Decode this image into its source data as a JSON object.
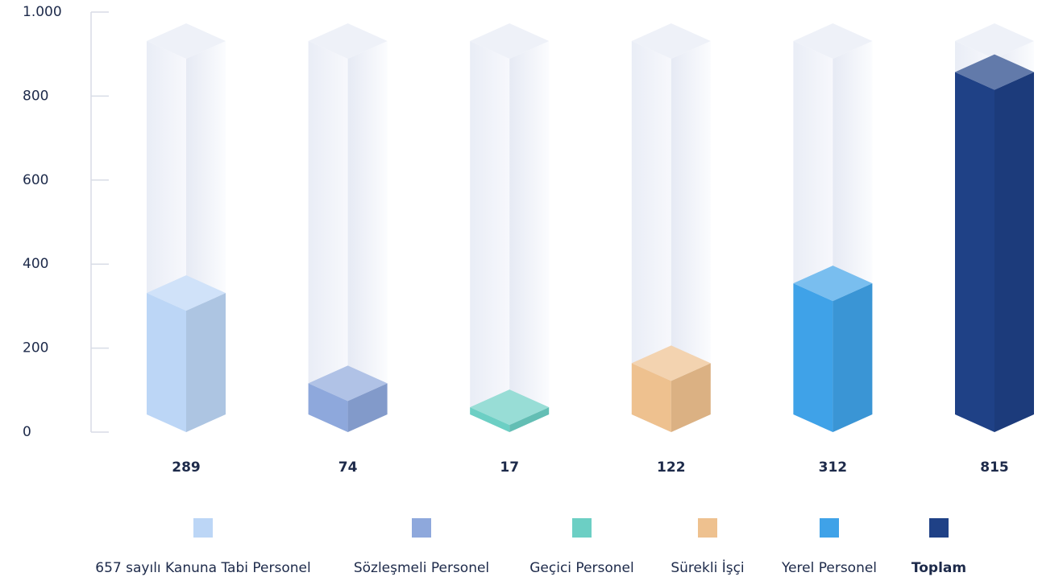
{
  "chart_data": {
    "type": "bar3d",
    "categories": [
      "657 sayılı Kanuna Tabi Personel",
      "Sözleşmeli Personel",
      "Geçici Personel",
      "Sürekli İşçi",
      "Yerel Personel",
      "Toplam"
    ],
    "values": [
      289,
      74,
      17,
      122,
      312,
      815
    ],
    "colors": [
      "#bcd6f6",
      "#8ea8dc",
      "#6ccfc4",
      "#eec18f",
      "#3fa2e8",
      "#1f4186"
    ],
    "ylim": [
      0,
      1000
    ],
    "yticks": [
      0,
      200,
      400,
      600,
      800,
      {
        "value": 1000,
        "label": "1.000"
      }
    ]
  }
}
